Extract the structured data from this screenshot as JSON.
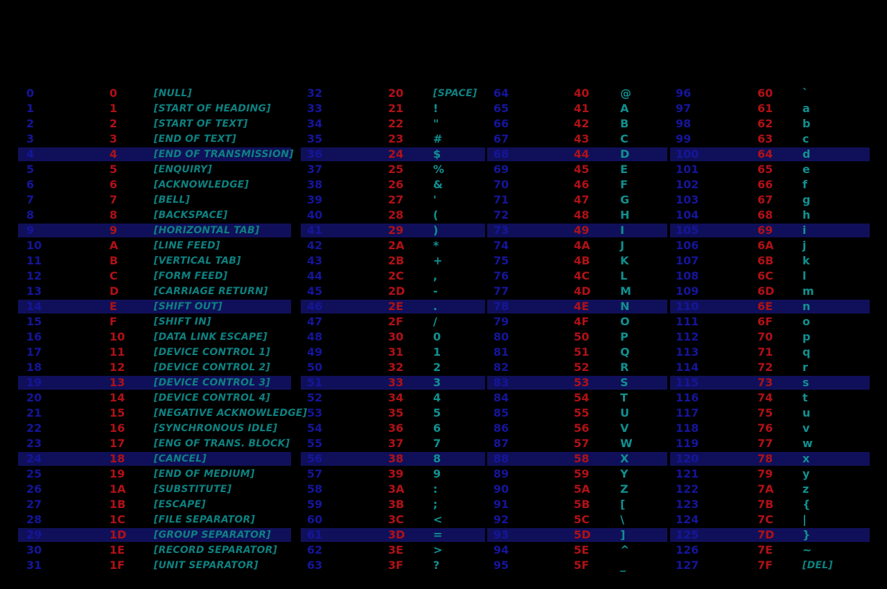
{
  "colors": {
    "background": "#000000",
    "highlight_band": "#10105a",
    "dec_text": "#15159b",
    "hex_text": "#b01116",
    "control_name_text": "#0e8080",
    "printable_char_text": "#109090"
  },
  "chart_data": {
    "type": "table",
    "columns": [
      "decimal",
      "hexadecimal",
      "character"
    ],
    "highlight": {
      "interval": 5,
      "offset": 4
    },
    "groups": [
      {
        "rows": [
          [
            "0",
            "0",
            "[NULL]"
          ],
          [
            "1",
            "1",
            "[START OF HEADING]"
          ],
          [
            "2",
            "2",
            "[START OF TEXT]"
          ],
          [
            "3",
            "3",
            "[END OF TEXT]"
          ],
          [
            "4",
            "4",
            "[END OF TRANSMISSION]"
          ],
          [
            "5",
            "5",
            "[ENQUIRY]"
          ],
          [
            "6",
            "6",
            "[ACKNOWLEDGE]"
          ],
          [
            "7",
            "7",
            "[BELL]"
          ],
          [
            "8",
            "8",
            "[BACKSPACE]"
          ],
          [
            "9",
            "9",
            "[HORIZONTAL TAB]"
          ],
          [
            "10",
            "A",
            "[LINE FEED]"
          ],
          [
            "11",
            "B",
            "[VERTICAL TAB]"
          ],
          [
            "12",
            "C",
            "[FORM FEED]"
          ],
          [
            "13",
            "D",
            "[CARRIAGE RETURN]"
          ],
          [
            "14",
            "E",
            "[SHIFT OUT]"
          ],
          [
            "15",
            "F",
            "[SHIFT IN]"
          ],
          [
            "16",
            "10",
            "[DATA LINK ESCAPE]"
          ],
          [
            "17",
            "11",
            "[DEVICE CONTROL 1]"
          ],
          [
            "18",
            "12",
            "[DEVICE CONTROL 2]"
          ],
          [
            "19",
            "13",
            "[DEVICE CONTROL 3]"
          ],
          [
            "20",
            "14",
            "[DEVICE CONTROL 4]"
          ],
          [
            "21",
            "15",
            "[NEGATIVE ACKNOWLEDGE]"
          ],
          [
            "22",
            "16",
            "[SYNCHRONOUS IDLE]"
          ],
          [
            "23",
            "17",
            "[ENG OF TRANS. BLOCK]"
          ],
          [
            "24",
            "18",
            "[CANCEL]"
          ],
          [
            "25",
            "19",
            "[END OF MEDIUM]"
          ],
          [
            "26",
            "1A",
            "[SUBSTITUTE]"
          ],
          [
            "27",
            "1B",
            "[ESCAPE]"
          ],
          [
            "28",
            "1C",
            "[FILE SEPARATOR]"
          ],
          [
            "29",
            "1D",
            "[GROUP SEPARATOR]"
          ],
          [
            "30",
            "1E",
            "[RECORD SEPARATOR]"
          ],
          [
            "31",
            "1F",
            "[UNIT SEPARATOR]"
          ]
        ]
      },
      {
        "rows": [
          [
            "32",
            "20",
            "[SPACE]"
          ],
          [
            "33",
            "21",
            "!"
          ],
          [
            "34",
            "22",
            "\""
          ],
          [
            "35",
            "23",
            "#"
          ],
          [
            "36",
            "24",
            "$"
          ],
          [
            "37",
            "25",
            "%"
          ],
          [
            "38",
            "26",
            "&"
          ],
          [
            "39",
            "27",
            "'"
          ],
          [
            "40",
            "28",
            "("
          ],
          [
            "41",
            "29",
            ")"
          ],
          [
            "42",
            "2A",
            "*"
          ],
          [
            "43",
            "2B",
            "+"
          ],
          [
            "44",
            "2C",
            ","
          ],
          [
            "45",
            "2D",
            "-"
          ],
          [
            "46",
            "2E",
            "."
          ],
          [
            "47",
            "2F",
            "/"
          ],
          [
            "48",
            "30",
            "0"
          ],
          [
            "49",
            "31",
            "1"
          ],
          [
            "50",
            "32",
            "2"
          ],
          [
            "51",
            "33",
            "3"
          ],
          [
            "52",
            "34",
            "4"
          ],
          [
            "53",
            "35",
            "5"
          ],
          [
            "54",
            "36",
            "6"
          ],
          [
            "55",
            "37",
            "7"
          ],
          [
            "56",
            "38",
            "8"
          ],
          [
            "57",
            "39",
            "9"
          ],
          [
            "58",
            "3A",
            ":"
          ],
          [
            "59",
            "3B",
            ";"
          ],
          [
            "60",
            "3C",
            "<"
          ],
          [
            "61",
            "3D",
            "="
          ],
          [
            "62",
            "3E",
            ">"
          ],
          [
            "63",
            "3F",
            "?"
          ]
        ]
      },
      {
        "rows": [
          [
            "64",
            "40",
            "@"
          ],
          [
            "65",
            "41",
            "A"
          ],
          [
            "66",
            "42",
            "B"
          ],
          [
            "67",
            "43",
            "C"
          ],
          [
            "68",
            "44",
            "D"
          ],
          [
            "69",
            "45",
            "E"
          ],
          [
            "70",
            "46",
            "F"
          ],
          [
            "71",
            "47",
            "G"
          ],
          [
            "72",
            "48",
            "H"
          ],
          [
            "73",
            "49",
            "I"
          ],
          [
            "74",
            "4A",
            "J"
          ],
          [
            "75",
            "4B",
            "K"
          ],
          [
            "76",
            "4C",
            "L"
          ],
          [
            "77",
            "4D",
            "M"
          ],
          [
            "78",
            "4E",
            "N"
          ],
          [
            "79",
            "4F",
            "O"
          ],
          [
            "80",
            "50",
            "P"
          ],
          [
            "81",
            "51",
            "Q"
          ],
          [
            "82",
            "52",
            "R"
          ],
          [
            "83",
            "53",
            "S"
          ],
          [
            "84",
            "54",
            "T"
          ],
          [
            "85",
            "55",
            "U"
          ],
          [
            "86",
            "56",
            "V"
          ],
          [
            "87",
            "57",
            "W"
          ],
          [
            "88",
            "58",
            "X"
          ],
          [
            "89",
            "59",
            "Y"
          ],
          [
            "90",
            "5A",
            "Z"
          ],
          [
            "91",
            "5B",
            "["
          ],
          [
            "92",
            "5C",
            "\\"
          ],
          [
            "93",
            "5D",
            "]"
          ],
          [
            "94",
            "5E",
            "^"
          ],
          [
            "95",
            "5F",
            "_"
          ]
        ]
      },
      {
        "rows": [
          [
            "96",
            "60",
            "`"
          ],
          [
            "97",
            "61",
            "a"
          ],
          [
            "98",
            "62",
            "b"
          ],
          [
            "99",
            "63",
            "c"
          ],
          [
            "100",
            "64",
            "d"
          ],
          [
            "101",
            "65",
            "e"
          ],
          [
            "102",
            "66",
            "f"
          ],
          [
            "103",
            "67",
            "g"
          ],
          [
            "104",
            "68",
            "h"
          ],
          [
            "105",
            "69",
            "i"
          ],
          [
            "106",
            "6A",
            "j"
          ],
          [
            "107",
            "6B",
            "k"
          ],
          [
            "108",
            "6C",
            "l"
          ],
          [
            "109",
            "6D",
            "m"
          ],
          [
            "110",
            "6E",
            "n"
          ],
          [
            "111",
            "6F",
            "o"
          ],
          [
            "112",
            "70",
            "p"
          ],
          [
            "113",
            "71",
            "q"
          ],
          [
            "114",
            "72",
            "r"
          ],
          [
            "115",
            "73",
            "s"
          ],
          [
            "116",
            "74",
            "t"
          ],
          [
            "117",
            "75",
            "u"
          ],
          [
            "118",
            "76",
            "v"
          ],
          [
            "119",
            "77",
            "w"
          ],
          [
            "120",
            "78",
            "x"
          ],
          [
            "121",
            "79",
            "y"
          ],
          [
            "122",
            "7A",
            "z"
          ],
          [
            "123",
            "7B",
            "{"
          ],
          [
            "124",
            "7C",
            "|"
          ],
          [
            "125",
            "7D",
            "}"
          ],
          [
            "126",
            "7E",
            "~"
          ],
          [
            "127",
            "7F",
            "[DEL]"
          ]
        ]
      }
    ]
  }
}
